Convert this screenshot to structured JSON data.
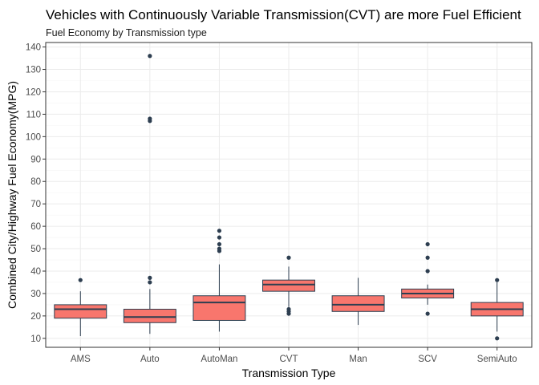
{
  "chart_data": {
    "type": "boxplot",
    "title": "Vehicles with Continuously Variable Transmission(CVT) are more Fuel Efficient",
    "subtitle": "Fuel Economy by Transmission type",
    "xlabel": "Transmission Type",
    "ylabel": "Combined City/Highway Fuel Economy(MPG)",
    "ylim": [
      6,
      142
    ],
    "yticks": [
      10,
      20,
      30,
      40,
      50,
      60,
      70,
      80,
      90,
      100,
      110,
      120,
      130,
      140
    ],
    "grid": true,
    "box_color": "#f8766d",
    "line_color": "#2d3e50",
    "categories": [
      "AMS",
      "Auto",
      "AutoMan",
      "CVT",
      "Man",
      "SCV",
      "SemiAuto"
    ],
    "boxes": [
      {
        "category": "AMS",
        "q1": 19,
        "median": 23,
        "q3": 25,
        "whisker_low": 11,
        "whisker_high": 31,
        "outliers": [
          36
        ]
      },
      {
        "category": "Auto",
        "q1": 17,
        "median": 19.5,
        "q3": 23,
        "whisker_low": 12,
        "whisker_high": 32,
        "outliers": [
          35,
          37,
          107,
          108,
          136
        ]
      },
      {
        "category": "AutoMan",
        "q1": 18,
        "median": 26,
        "q3": 29,
        "whisker_low": 13,
        "whisker_high": 43,
        "outliers": [
          49,
          50,
          52,
          55,
          58
        ]
      },
      {
        "category": "CVT",
        "q1": 31,
        "median": 34,
        "q3": 36,
        "whisker_low": 24,
        "whisker_high": 42,
        "outliers": [
          21,
          22,
          23,
          46
        ]
      },
      {
        "category": "Man",
        "q1": 22,
        "median": 25,
        "q3": 29,
        "whisker_low": 16,
        "whisker_high": 37,
        "outliers": []
      },
      {
        "category": "SCV",
        "q1": 28,
        "median": 30,
        "q3": 32,
        "whisker_low": 25,
        "whisker_high": 34,
        "outliers": [
          21,
          40,
          46,
          52
        ]
      },
      {
        "category": "SemiAuto",
        "q1": 20,
        "median": 23,
        "q3": 26,
        "whisker_low": 13,
        "whisker_high": 35,
        "outliers": [
          10,
          36
        ]
      }
    ]
  }
}
